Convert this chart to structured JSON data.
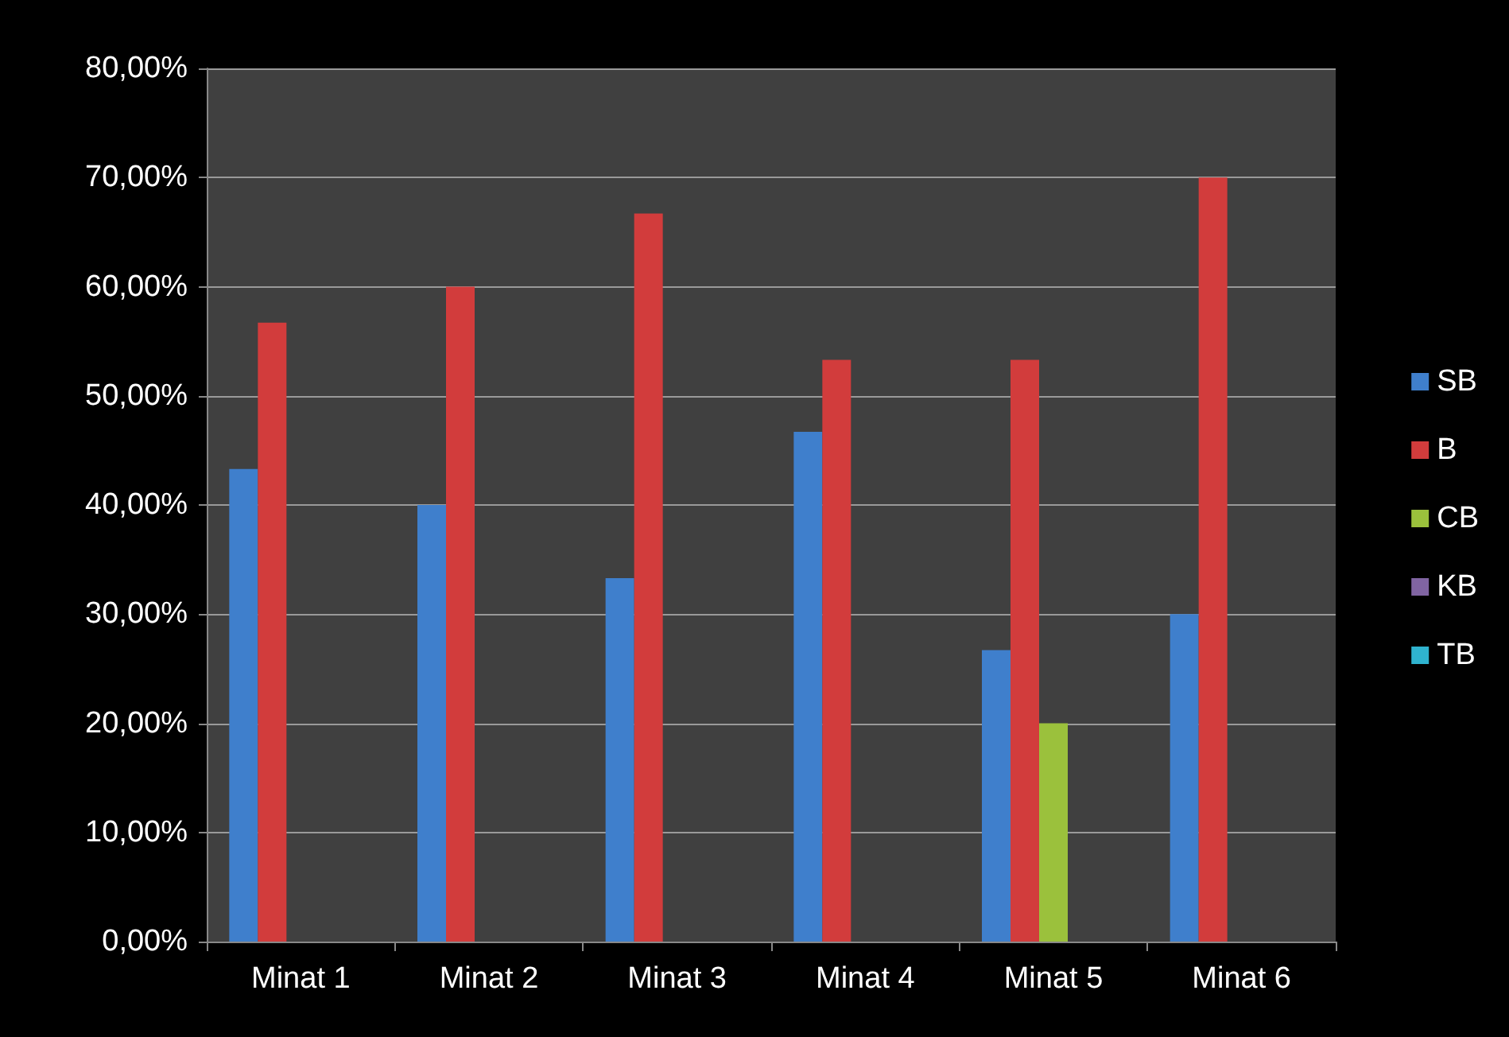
{
  "chart_data": {
    "type": "bar",
    "categories": [
      "Minat 1",
      "Minat 2",
      "Minat 3",
      "Minat 4",
      "Minat 5",
      "Minat 6"
    ],
    "series": [
      {
        "name": "SB",
        "color": "#3f7fcc",
        "values": [
          43.3,
          40,
          33.3,
          46.7,
          26.7,
          30
        ]
      },
      {
        "name": "B",
        "color": "#d23c3c",
        "values": [
          56.7,
          60,
          66.7,
          53.3,
          53.3,
          70
        ]
      },
      {
        "name": "CB",
        "color": "#9bc13c",
        "values": [
          0,
          0,
          0,
          0,
          20,
          0
        ]
      },
      {
        "name": "KB",
        "color": "#8064a2",
        "values": [
          0,
          0,
          0,
          0,
          0,
          0
        ]
      },
      {
        "name": "TB",
        "color": "#2fb3cf",
        "values": [
          0,
          0,
          0,
          0,
          0,
          0
        ]
      }
    ],
    "ylim": [
      0,
      80
    ],
    "yticks": [
      {
        "value": 0,
        "label": "0,00%"
      },
      {
        "value": 10,
        "label": "10,00%"
      },
      {
        "value": 20,
        "label": "20,00%"
      },
      {
        "value": 30,
        "label": "30,00%"
      },
      {
        "value": 40,
        "label": "40,00%"
      },
      {
        "value": 50,
        "label": "50,00%"
      },
      {
        "value": 60,
        "label": "60,00%"
      },
      {
        "value": 70,
        "label": "70,00%"
      },
      {
        "value": 80,
        "label": "80,00%"
      }
    ],
    "grid": "y",
    "legend": "right"
  }
}
